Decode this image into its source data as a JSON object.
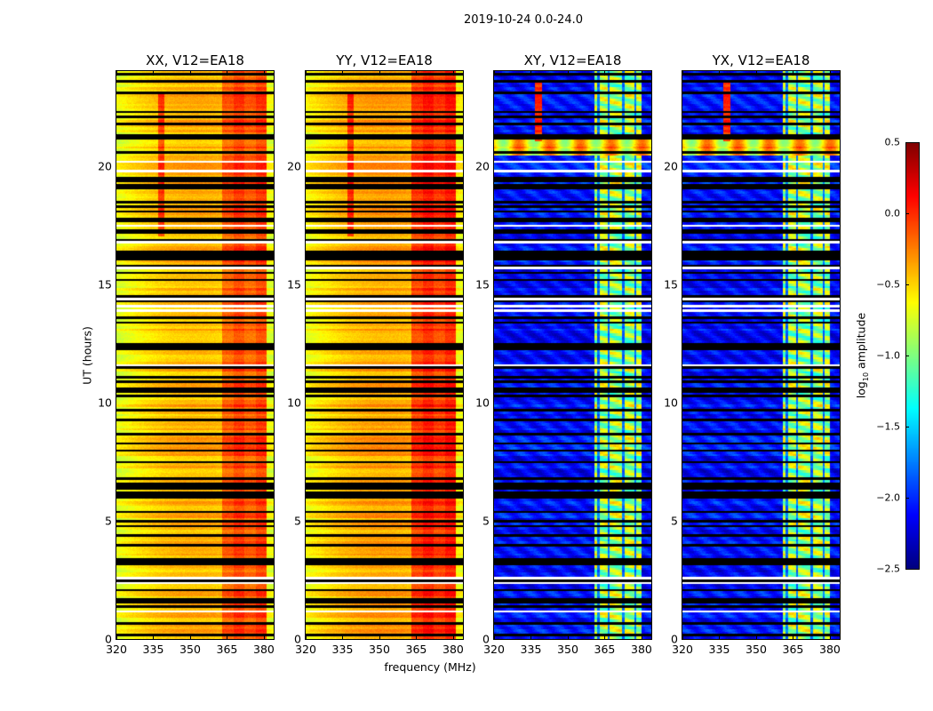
{
  "chart_data": {
    "type": "heatmap",
    "title": "2019-10-24 0.0-24.0",
    "xlabel": "frequency (MHz)",
    "ylabel": "UT (hours)",
    "xlim": [
      320,
      384
    ],
    "ylim": [
      0,
      24
    ],
    "xticks": [
      "320",
      "335",
      "350",
      "365",
      "380"
    ],
    "yticks": [
      "0",
      "5",
      "10",
      "15",
      "20"
    ],
    "colormap": "jet",
    "flagged_color": "#000000",
    "gap_color": "#ffffff",
    "colorbar": {
      "label_prefix": "log",
      "label_sub": "10",
      "label_suffix": " amplitude",
      "range": [
        -2.5,
        0.5
      ],
      "ticks": [
        "0.5",
        "0.0",
        "−0.5",
        "−1.0",
        "−1.5",
        "−2.0",
        "−2.5"
      ]
    },
    "panels": [
      {
        "title": "XX, V12=EA18",
        "typical_log_amp": -0.4,
        "band_363_381_log_amp": -0.1
      },
      {
        "title": "YY, V12=EA18",
        "typical_log_amp": -0.35,
        "band_363_381_log_amp": 0.0
      },
      {
        "title": "XY, V12=EA18",
        "typical_log_amp": -2.1,
        "band_361_380_log_amp": -0.9
      },
      {
        "title": "YX, V12=EA18",
        "typical_log_amp": -2.1,
        "band_361_380_log_amp": -0.9
      }
    ]
  }
}
